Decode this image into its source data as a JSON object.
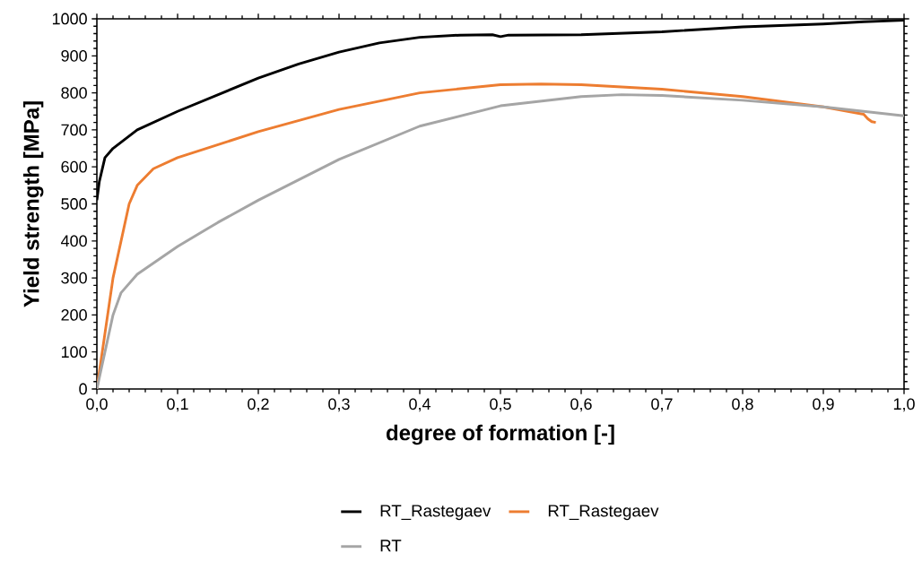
{
  "chart_data": {
    "type": "line",
    "xlabel": "degree of formation [-]",
    "ylabel": "Yield strength [MPa]",
    "xlim": [
      0,
      1
    ],
    "ylim": [
      0,
      1000
    ],
    "xticks": [
      {
        "value": 0,
        "label": "0,0"
      },
      {
        "value": 0.1,
        "label": "0,1"
      },
      {
        "value": 0.2,
        "label": "0,2"
      },
      {
        "value": 0.3,
        "label": "0,3"
      },
      {
        "value": 0.4,
        "label": "0,4"
      },
      {
        "value": 0.5,
        "label": "0,5"
      },
      {
        "value": 0.6,
        "label": "0,6"
      },
      {
        "value": 0.7,
        "label": "0,7"
      },
      {
        "value": 0.8,
        "label": "0,8"
      },
      {
        "value": 0.9,
        "label": "0,9"
      },
      {
        "value": 1,
        "label": "1,0"
      }
    ],
    "yticks": [
      0,
      100,
      200,
      300,
      400,
      500,
      600,
      700,
      800,
      900,
      1000
    ],
    "grid": false,
    "legend": "bottom",
    "marker": "none",
    "series": [
      {
        "name": "RT_Rastegaev",
        "color": "#000000",
        "x": [
          0,
          0.003,
          0.01,
          0.02,
          0.05,
          0.1,
          0.15,
          0.2,
          0.25,
          0.3,
          0.35,
          0.4,
          0.45,
          0.49,
          0.5,
          0.51,
          0.6,
          0.7,
          0.8,
          0.9,
          0.95,
          1.0
        ],
        "values": [
          510,
          560,
          625,
          650,
          700,
          750,
          795,
          840,
          878,
          910,
          935,
          950,
          956,
          957,
          952,
          956,
          957,
          965,
          978,
          986,
          992,
          996
        ]
      },
      {
        "name": "RT_Rastegaev",
        "color": "#ed7d31",
        "x": [
          0,
          0.02,
          0.04,
          0.05,
          0.07,
          0.1,
          0.15,
          0.2,
          0.3,
          0.4,
          0.5,
          0.55,
          0.6,
          0.7,
          0.8,
          0.9,
          0.95,
          0.955,
          0.96,
          0.965
        ],
        "values": [
          0,
          300,
          500,
          550,
          595,
          625,
          660,
          695,
          755,
          800,
          822,
          824,
          822,
          810,
          790,
          762,
          742,
          730,
          722,
          720
        ]
      },
      {
        "name": "RT",
        "color": "#a5a5a5",
        "x": [
          0,
          0.02,
          0.03,
          0.05,
          0.1,
          0.15,
          0.2,
          0.3,
          0.4,
          0.5,
          0.6,
          0.65,
          0.7,
          0.8,
          0.9,
          1.0
        ],
        "values": [
          0,
          200,
          260,
          310,
          385,
          450,
          510,
          620,
          710,
          765,
          790,
          795,
          793,
          780,
          762,
          738
        ]
      }
    ]
  }
}
